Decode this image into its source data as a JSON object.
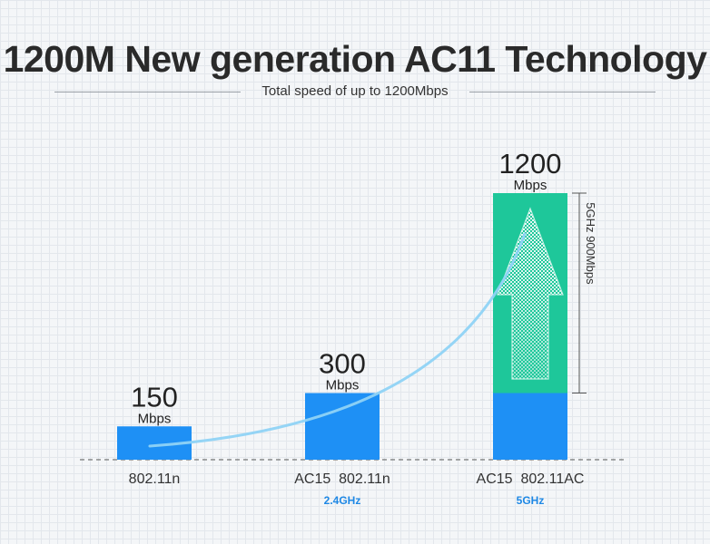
{
  "header": {
    "title": "1200M New generation AC11 Technology",
    "subtitle": "Total speed of up to 1200Mbps"
  },
  "colors": {
    "bar_blue": "#1e90f5",
    "bar_green": "#1ec79a",
    "curve": "#8fd3f5",
    "sublabel_blue": "#1e88e5"
  },
  "chart_data": {
    "type": "bar",
    "categories": [
      "802.11n",
      "AC15  802.11n",
      "AC15  802.11AC"
    ],
    "sublabels": [
      "",
      "2.4GHz",
      "5GHz"
    ],
    "value_labels": [
      "150",
      "300",
      "1200"
    ],
    "unit_label": "Mbps",
    "segments": [
      [
        150
      ],
      [
        300
      ],
      [
        300,
        900
      ]
    ],
    "bracket_annotation": "5GHz 900Mbps",
    "ylim": [
      0,
      1200
    ],
    "grid": true,
    "trend_curve": true
  }
}
